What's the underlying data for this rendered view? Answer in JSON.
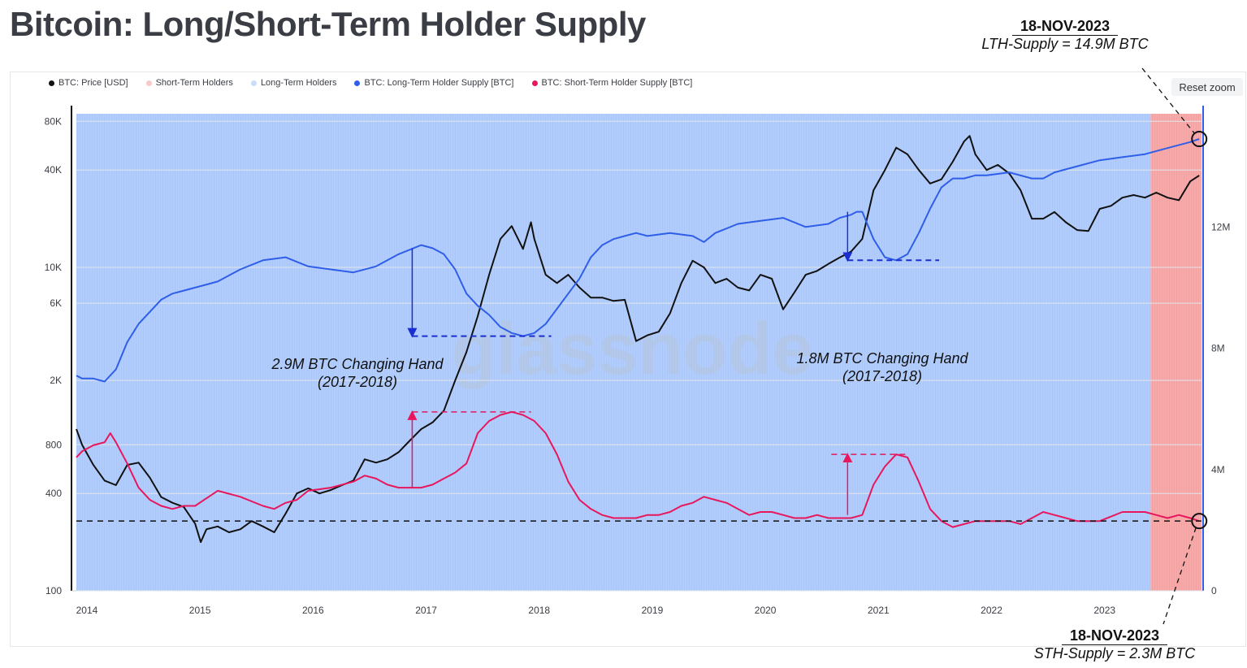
{
  "title": "Bitcoin: Long/Short-Term Holder Supply",
  "reset_zoom": "Reset zoom",
  "watermark": "glassnode",
  "legend": [
    {
      "label": "BTC: Price [USD]",
      "color": "#111111"
    },
    {
      "label": "Short-Term Holders",
      "color": "#f7c9c9"
    },
    {
      "label": "Long-Term Holders",
      "color": "#c9dcfb"
    },
    {
      "label": "BTC: Long-Term Holder Supply [BTC]",
      "color": "#2f5ee8"
    },
    {
      "label": "BTC: Short-Term Holder Supply [BTC]",
      "color": "#e8175d"
    }
  ],
  "callouts": {
    "lth": {
      "date": "18-NOV-2023",
      "value": "LTH-Supply = 14.9M BTC"
    },
    "sth": {
      "date": "18-NOV-2023",
      "value": "STH-Supply = 2.3M BTC"
    }
  },
  "annotations": {
    "a2017": {
      "line1": "2.9M BTC Changing Hand",
      "line2": "(2017-2018)"
    },
    "a2021": {
      "line1": "1.8M BTC Changing Hand",
      "line2": "(2017-2018)"
    }
  },
  "chart_data": {
    "type": "line",
    "title": "Bitcoin: Long/Short-Term Holder Supply",
    "x_ticks": [
      "2014",
      "2015",
      "2016",
      "2017",
      "2018",
      "2019",
      "2020",
      "2021",
      "2022",
      "2023"
    ],
    "y_left_ticks": [
      {
        "v": 100,
        "label": "100"
      },
      {
        "v": 400,
        "label": "400"
      },
      {
        "v": 800,
        "label": "800"
      },
      {
        "v": 2000,
        "label": "2K"
      },
      {
        "v": 6000,
        "label": "6K"
      },
      {
        "v": 10000,
        "label": "10K"
      },
      {
        "v": 40000,
        "label": "40K"
      },
      {
        "v": 80000,
        "label": "80K"
      }
    ],
    "y_right_ticks": [
      {
        "v": 0,
        "label": "0"
      },
      {
        "v": 4,
        "label": "4M"
      },
      {
        "v": 8,
        "label": "8M"
      },
      {
        "v": 12,
        "label": "12M"
      }
    ],
    "y_left_scale": "log",
    "y_left_range": [
      100,
      100000
    ],
    "y_right_range_millions": [
      0,
      16
    ],
    "sth_region_start": 2023.45,
    "series": [
      {
        "name": "BTC: Price [USD]",
        "x": [
          2013.95,
          2014.0,
          2014.1,
          2014.2,
          2014.3,
          2014.4,
          2014.5,
          2014.6,
          2014.7,
          2014.8,
          2014.9,
          2015.0,
          2015.05,
          2015.1,
          2015.2,
          2015.3,
          2015.4,
          2015.5,
          2015.6,
          2015.7,
          2015.8,
          2015.9,
          2016.0,
          2016.1,
          2016.2,
          2016.3,
          2016.4,
          2016.5,
          2016.6,
          2016.7,
          2016.8,
          2016.9,
          2017.0,
          2017.1,
          2017.2,
          2017.3,
          2017.4,
          2017.5,
          2017.6,
          2017.7,
          2017.8,
          2017.9,
          2017.97,
          2018.0,
          2018.1,
          2018.2,
          2018.3,
          2018.4,
          2018.5,
          2018.6,
          2018.7,
          2018.8,
          2018.9,
          2019.0,
          2019.1,
          2019.2,
          2019.3,
          2019.4,
          2019.5,
          2019.6,
          2019.7,
          2019.8,
          2019.9,
          2020.0,
          2020.1,
          2020.2,
          2020.3,
          2020.4,
          2020.5,
          2020.6,
          2020.7,
          2020.8,
          2020.9,
          2021.0,
          2021.1,
          2021.2,
          2021.3,
          2021.4,
          2021.5,
          2021.6,
          2021.7,
          2021.8,
          2021.85,
          2021.9,
          2022.0,
          2022.1,
          2022.2,
          2022.3,
          2022.4,
          2022.5,
          2022.6,
          2022.7,
          2022.8,
          2022.9,
          2023.0,
          2023.1,
          2023.2,
          2023.3,
          2023.4,
          2023.5,
          2023.6,
          2023.7,
          2023.8,
          2023.88
        ],
        "values": [
          1000,
          800,
          600,
          480,
          450,
          600,
          620,
          500,
          380,
          350,
          330,
          260,
          200,
          240,
          250,
          230,
          240,
          270,
          250,
          230,
          300,
          400,
          430,
          400,
          420,
          450,
          480,
          650,
          620,
          650,
          720,
          850,
          1000,
          1100,
          1300,
          2000,
          3000,
          5000,
          9000,
          15000,
          18000,
          13000,
          19000,
          15000,
          9000,
          8000,
          9000,
          7500,
          6500,
          6500,
          6200,
          6300,
          3500,
          3800,
          4000,
          5200,
          8000,
          11000,
          10000,
          8000,
          8500,
          7500,
          7200,
          9000,
          8500,
          5500,
          7000,
          9000,
          9500,
          10500,
          11500,
          12500,
          15000,
          30000,
          40000,
          55000,
          50000,
          40000,
          33000,
          35000,
          45000,
          60000,
          65000,
          50000,
          40000,
          43000,
          38000,
          30000,
          20000,
          20000,
          22000,
          19000,
          17000,
          16800,
          23000,
          24000,
          27000,
          28000,
          27000,
          29000,
          27000,
          26000,
          34000,
          37000
        ]
      },
      {
        "name": "BTC: Long-Term Holder Supply [BTC]",
        "x": [
          2013.95,
          2014.0,
          2014.1,
          2014.2,
          2014.3,
          2014.4,
          2014.5,
          2014.6,
          2014.7,
          2014.8,
          2014.9,
          2015.0,
          2015.2,
          2015.4,
          2015.6,
          2015.8,
          2016.0,
          2016.2,
          2016.4,
          2016.6,
          2016.8,
          2017.0,
          2017.1,
          2017.2,
          2017.3,
          2017.4,
          2017.5,
          2017.6,
          2017.7,
          2017.8,
          2017.9,
          2018.0,
          2018.1,
          2018.2,
          2018.3,
          2018.4,
          2018.5,
          2018.6,
          2018.7,
          2018.8,
          2018.9,
          2019.0,
          2019.2,
          2019.4,
          2019.5,
          2019.6,
          2019.8,
          2020.0,
          2020.2,
          2020.4,
          2020.6,
          2020.7,
          2020.8,
          2020.85,
          2020.9,
          2021.0,
          2021.1,
          2021.2,
          2021.3,
          2021.4,
          2021.5,
          2021.6,
          2021.7,
          2021.8,
          2021.9,
          2022.0,
          2022.2,
          2022.4,
          2022.5,
          2022.6,
          2022.8,
          2023.0,
          2023.2,
          2023.4,
          2023.6,
          2023.8,
          2023.88
        ],
        "values": [
          7.1,
          7.0,
          7.0,
          6.9,
          7.3,
          8.2,
          8.8,
          9.2,
          9.6,
          9.8,
          9.9,
          10.0,
          10.2,
          10.6,
          10.9,
          11.0,
          10.7,
          10.6,
          10.5,
          10.7,
          11.1,
          11.4,
          11.3,
          11.1,
          10.6,
          9.8,
          9.4,
          9.1,
          8.7,
          8.5,
          8.4,
          8.5,
          8.8,
          9.3,
          9.8,
          10.3,
          11.0,
          11.4,
          11.6,
          11.7,
          11.8,
          11.7,
          11.8,
          11.7,
          11.5,
          11.8,
          12.1,
          12.2,
          12.3,
          12.0,
          12.1,
          12.3,
          12.4,
          12.5,
          12.5,
          11.6,
          11.0,
          10.9,
          11.1,
          11.8,
          12.6,
          13.3,
          13.6,
          13.6,
          13.7,
          13.7,
          13.8,
          13.6,
          13.6,
          13.8,
          14.0,
          14.2,
          14.3,
          14.4,
          14.6,
          14.8,
          14.9
        ]
      },
      {
        "name": "BTC: Short-Term Holder Supply [BTC]",
        "x": [
          2013.95,
          2014.0,
          2014.1,
          2014.2,
          2014.25,
          2014.3,
          2014.4,
          2014.5,
          2014.6,
          2014.7,
          2014.8,
          2014.9,
          2015.0,
          2015.2,
          2015.4,
          2015.6,
          2015.7,
          2015.8,
          2015.9,
          2016.0,
          2016.2,
          2016.4,
          2016.5,
          2016.6,
          2016.7,
          2016.8,
          2016.9,
          2017.0,
          2017.1,
          2017.2,
          2017.3,
          2017.4,
          2017.5,
          2017.6,
          2017.7,
          2017.8,
          2017.9,
          2018.0,
          2018.1,
          2018.2,
          2018.3,
          2018.4,
          2018.5,
          2018.6,
          2018.7,
          2018.8,
          2018.9,
          2019.0,
          2019.1,
          2019.2,
          2019.3,
          2019.4,
          2019.5,
          2019.6,
          2019.7,
          2019.8,
          2019.9,
          2020.0,
          2020.1,
          2020.2,
          2020.3,
          2020.4,
          2020.5,
          2020.6,
          2020.7,
          2020.8,
          2020.9,
          2021.0,
          2021.1,
          2021.2,
          2021.3,
          2021.4,
          2021.5,
          2021.6,
          2021.7,
          2021.8,
          2021.9,
          2022.0,
          2022.2,
          2022.3,
          2022.4,
          2022.5,
          2022.6,
          2022.8,
          2023.0,
          2023.2,
          2023.4,
          2023.5,
          2023.6,
          2023.7,
          2023.8,
          2023.88
        ],
        "values": [
          4.4,
          4.6,
          4.8,
          4.9,
          5.2,
          4.9,
          4.2,
          3.4,
          3.0,
          2.8,
          2.7,
          2.8,
          2.8,
          3.3,
          3.1,
          2.8,
          2.7,
          2.9,
          3.0,
          3.3,
          3.4,
          3.6,
          3.8,
          3.7,
          3.5,
          3.4,
          3.4,
          3.4,
          3.5,
          3.7,
          3.9,
          4.2,
          5.2,
          5.6,
          5.8,
          5.9,
          5.8,
          5.6,
          5.2,
          4.5,
          3.6,
          3.0,
          2.7,
          2.5,
          2.4,
          2.4,
          2.4,
          2.5,
          2.5,
          2.6,
          2.8,
          2.9,
          3.1,
          3.0,
          2.9,
          2.7,
          2.5,
          2.6,
          2.6,
          2.5,
          2.4,
          2.4,
          2.5,
          2.4,
          2.4,
          2.4,
          2.5,
          3.5,
          4.1,
          4.5,
          4.4,
          3.6,
          2.7,
          2.3,
          2.1,
          2.2,
          2.3,
          2.3,
          2.3,
          2.2,
          2.4,
          2.6,
          2.5,
          2.3,
          2.3,
          2.6,
          2.6,
          2.5,
          2.4,
          2.5,
          2.4,
          2.3
        ]
      }
    ]
  }
}
